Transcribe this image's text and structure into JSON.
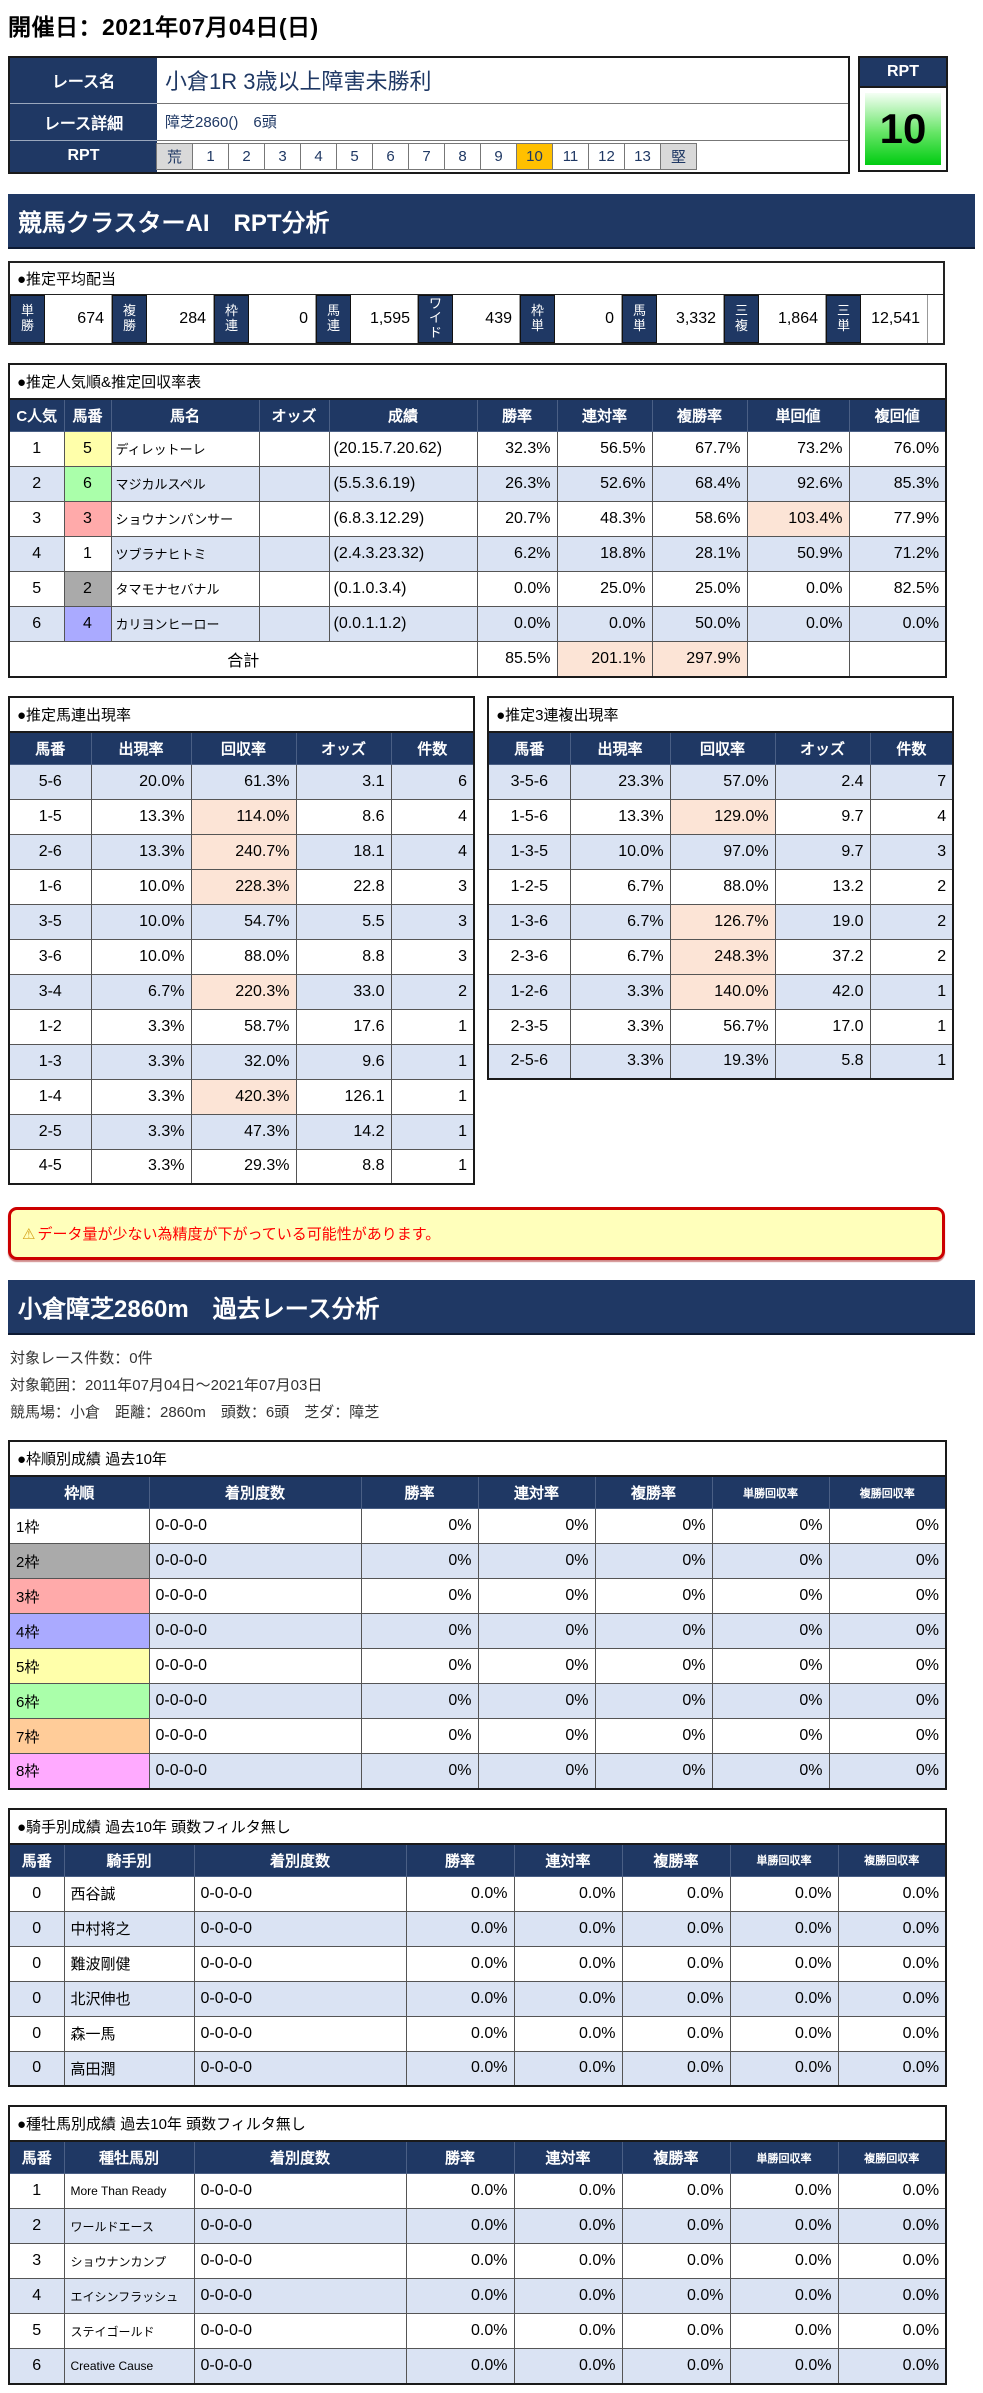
{
  "page": {
    "date_header": "開催日：2021年07月04日(日)"
  },
  "colors": {
    "navy": "#1f3864",
    "stripe_blue": "#dae3f3",
    "highlight_peach": "#fce4d6",
    "rpt_selected_orange": "#ffc000",
    "rpt_value_green": "#00cc11",
    "warning_bg": "#ffffbb",
    "warning_border": "#cc0000",
    "warning_text": "#ff0000"
  },
  "race": {
    "name_label": "レース名",
    "name": "小倉1R 3歳以上障害未勝利",
    "detail_label": "レース詳細",
    "detail": "障芝2860()　6頭",
    "rpt_label": "RPT",
    "scale": [
      {
        "t": "荒",
        "bg": "#d9d9d9"
      },
      {
        "t": "1",
        "bg": ""
      },
      {
        "t": "2",
        "bg": ""
      },
      {
        "t": "3",
        "bg": ""
      },
      {
        "t": "4",
        "bg": ""
      },
      {
        "t": "5",
        "bg": ""
      },
      {
        "t": "6",
        "bg": ""
      },
      {
        "t": "7",
        "bg": ""
      },
      {
        "t": "8",
        "bg": ""
      },
      {
        "t": "9",
        "bg": ""
      },
      {
        "t": "10",
        "bg": "#ffc000"
      },
      {
        "t": "11",
        "bg": ""
      },
      {
        "t": "12",
        "bg": ""
      },
      {
        "t": "13",
        "bg": ""
      },
      {
        "t": "堅",
        "bg": "#d9d9d9"
      }
    ],
    "rpt_box": {
      "label": "RPT",
      "value": "10"
    }
  },
  "ai_section": {
    "title": "競馬クラスターAI　RPT分析",
    "payout": {
      "title": "●推定平均配当",
      "items": [
        {
          "label": "単勝",
          "value": "674"
        },
        {
          "label": "複勝",
          "value": "284"
        },
        {
          "label": "枠連",
          "value": "0"
        },
        {
          "label": "馬連",
          "value": "1,595"
        },
        {
          "label": "ワイド",
          "value": "439"
        },
        {
          "label": "枠単",
          "value": "0"
        },
        {
          "label": "馬単",
          "value": "3,332"
        },
        {
          "label": "三複",
          "value": "1,864"
        },
        {
          "label": "三単",
          "value": "12,541"
        }
      ]
    },
    "pop_table": {
      "title": "●推定人気順&推定回収率表",
      "headers": [
        "C人気",
        "馬番",
        "馬名",
        "オッズ",
        "成績",
        "勝率",
        "連対率",
        "複勝率",
        "単回値",
        "複回値"
      ],
      "rows": [
        {
          "rank": "1",
          "num": "5",
          "num_bg": "#ffffaa",
          "name": "ディレットーレ",
          "odds": "",
          "record": "(20.15.7.20.62)",
          "win": "32.3%",
          "quinella": "56.5%",
          "show": "67.7%",
          "win_roi": "73.2%",
          "win_roi_bg": "",
          "show_roi": "76.0%"
        },
        {
          "rank": "2",
          "num": "6",
          "num_bg": "#aaffaa",
          "name": "マジカルスペル",
          "odds": "",
          "record": "(5.5.3.6.19)",
          "win": "26.3%",
          "quinella": "52.6%",
          "show": "68.4%",
          "win_roi": "92.6%",
          "win_roi_bg": "",
          "show_roi": "85.3%"
        },
        {
          "rank": "3",
          "num": "3",
          "num_bg": "#ffaaaa",
          "name": "ショウナンパンサー",
          "odds": "",
          "record": "(6.8.3.12.29)",
          "win": "20.7%",
          "quinella": "48.3%",
          "show": "58.6%",
          "win_roi": "103.4%",
          "win_roi_bg": "#fce4d6",
          "show_roi": "77.9%"
        },
        {
          "rank": "4",
          "num": "1",
          "num_bg": "#ffffff",
          "name": "ツブラナヒトミ",
          "odds": "",
          "record": "(2.4.3.23.32)",
          "win": "6.2%",
          "quinella": "18.8%",
          "show": "28.1%",
          "win_roi": "50.9%",
          "win_roi_bg": "",
          "show_roi": "71.2%"
        },
        {
          "rank": "5",
          "num": "2",
          "num_bg": "#aaaaaa",
          "name": "タマモナセバナル",
          "odds": "",
          "record": "(0.1.0.3.4)",
          "win": "0.0%",
          "quinella": "25.0%",
          "show": "25.0%",
          "win_roi": "0.0%",
          "win_roi_bg": "",
          "show_roi": "82.5%"
        },
        {
          "rank": "6",
          "num": "4",
          "num_bg": "#aaaaff",
          "name": "カリヨンヒーロー",
          "odds": "",
          "record": "(0.0.1.1.2)",
          "win": "0.0%",
          "quinella": "0.0%",
          "show": "50.0%",
          "win_roi": "0.0%",
          "win_roi_bg": "",
          "show_roi": "0.0%"
        }
      ],
      "total": {
        "label": "合計",
        "win": "85.5%",
        "win_bg": "",
        "quinella": "201.1%",
        "quinella_bg": "#fce4d6",
        "show": "297.9%",
        "show_bg": "#fce4d6"
      }
    },
    "umaren_table": {
      "title": "●推定馬連出現率",
      "headers": [
        "馬番",
        "出現率",
        "回収率",
        "オッズ",
        "件数"
      ],
      "rows": [
        {
          "pair": "5-6",
          "rate": "20.0%",
          "roi": "61.3%",
          "roi_bg": "",
          "odds": "3.1",
          "count": "6"
        },
        {
          "pair": "1-5",
          "rate": "13.3%",
          "roi": "114.0%",
          "roi_bg": "#fce4d6",
          "odds": "8.6",
          "count": "4"
        },
        {
          "pair": "2-6",
          "rate": "13.3%",
          "roi": "240.7%",
          "roi_bg": "#fce4d6",
          "odds": "18.1",
          "count": "4"
        },
        {
          "pair": "1-6",
          "rate": "10.0%",
          "roi": "228.3%",
          "roi_bg": "#fce4d6",
          "odds": "22.8",
          "count": "3"
        },
        {
          "pair": "3-5",
          "rate": "10.0%",
          "roi": "54.7%",
          "roi_bg": "",
          "odds": "5.5",
          "count": "3"
        },
        {
          "pair": "3-6",
          "rate": "10.0%",
          "roi": "88.0%",
          "roi_bg": "",
          "odds": "8.8",
          "count": "3"
        },
        {
          "pair": "3-4",
          "rate": "6.7%",
          "roi": "220.3%",
          "roi_bg": "#fce4d6",
          "odds": "33.0",
          "count": "2"
        },
        {
          "pair": "1-2",
          "rate": "3.3%",
          "roi": "58.7%",
          "roi_bg": "",
          "odds": "17.6",
          "count": "1"
        },
        {
          "pair": "1-3",
          "rate": "3.3%",
          "roi": "32.0%",
          "roi_bg": "",
          "odds": "9.6",
          "count": "1"
        },
        {
          "pair": "1-4",
          "rate": "3.3%",
          "roi": "420.3%",
          "roi_bg": "#fce4d6",
          "odds": "126.1",
          "count": "1"
        },
        {
          "pair": "2-5",
          "rate": "3.3%",
          "roi": "47.3%",
          "roi_bg": "",
          "odds": "14.2",
          "count": "1"
        },
        {
          "pair": "4-5",
          "rate": "3.3%",
          "roi": "29.3%",
          "roi_bg": "",
          "odds": "8.8",
          "count": "1"
        }
      ]
    },
    "sanrenpuku_table": {
      "title": "●推定3連複出現率",
      "headers": [
        "馬番",
        "出現率",
        "回収率",
        "オッズ",
        "件数"
      ],
      "rows": [
        {
          "pair": "3-5-6",
          "rate": "23.3%",
          "roi": "57.0%",
          "roi_bg": "",
          "odds": "2.4",
          "count": "7"
        },
        {
          "pair": "1-5-6",
          "rate": "13.3%",
          "roi": "129.0%",
          "roi_bg": "#fce4d6",
          "odds": "9.7",
          "count": "4"
        },
        {
          "pair": "1-3-5",
          "rate": "10.0%",
          "roi": "97.0%",
          "roi_bg": "",
          "odds": "9.7",
          "count": "3"
        },
        {
          "pair": "1-2-5",
          "rate": "6.7%",
          "roi": "88.0%",
          "roi_bg": "",
          "odds": "13.2",
          "count": "2"
        },
        {
          "pair": "1-3-6",
          "rate": "6.7%",
          "roi": "126.7%",
          "roi_bg": "#fce4d6",
          "odds": "19.0",
          "count": "2"
        },
        {
          "pair": "2-3-6",
          "rate": "6.7%",
          "roi": "248.3%",
          "roi_bg": "#fce4d6",
          "odds": "37.2",
          "count": "2"
        },
        {
          "pair": "1-2-6",
          "rate": "3.3%",
          "roi": "140.0%",
          "roi_bg": "#fce4d6",
          "odds": "42.0",
          "count": "1"
        },
        {
          "pair": "2-3-5",
          "rate": "3.3%",
          "roi": "56.7%",
          "roi_bg": "",
          "odds": "17.0",
          "count": "1"
        },
        {
          "pair": "2-5-6",
          "rate": "3.3%",
          "roi": "19.3%",
          "roi_bg": "",
          "odds": "5.8",
          "count": "1"
        }
      ]
    },
    "warning": {
      "icon": "⚠",
      "text": "データ量が少ない為精度が下がっている可能性があります。"
    }
  },
  "past_section": {
    "title": "小倉障芝2860m　過去レース分析",
    "info_lines": [
      "対象レース件数：0件",
      "対象範囲：2011年07月04日～2021年07月03日",
      "競馬場：小倉　距離：2860m　頭数：6頭　芝ダ：障芝"
    ],
    "waku_table": {
      "title": "●枠順別成績 過去10年",
      "headers": [
        "枠順",
        "着別度数",
        "勝率",
        "連対率",
        "複勝率",
        "単勝回収率",
        "複勝回収率"
      ],
      "rows": [
        {
          "label": "1枠",
          "bg": "#ffffff",
          "counts": "0-0-0-0",
          "win": "0%",
          "quinella": "0%",
          "show": "0%",
          "win_roi": "0%",
          "show_roi": "0%"
        },
        {
          "label": "2枠",
          "bg": "#aaaaaa",
          "counts": "0-0-0-0",
          "win": "0%",
          "quinella": "0%",
          "show": "0%",
          "win_roi": "0%",
          "show_roi": "0%"
        },
        {
          "label": "3枠",
          "bg": "#ffaaaa",
          "counts": "0-0-0-0",
          "win": "0%",
          "quinella": "0%",
          "show": "0%",
          "win_roi": "0%",
          "show_roi": "0%"
        },
        {
          "label": "4枠",
          "bg": "#aaaaff",
          "counts": "0-0-0-0",
          "win": "0%",
          "quinella": "0%",
          "show": "0%",
          "win_roi": "0%",
          "show_roi": "0%"
        },
        {
          "label": "5枠",
          "bg": "#ffffaa",
          "counts": "0-0-0-0",
          "win": "0%",
          "quinella": "0%",
          "show": "0%",
          "win_roi": "0%",
          "show_roi": "0%"
        },
        {
          "label": "6枠",
          "bg": "#aaffaa",
          "counts": "0-0-0-0",
          "win": "0%",
          "quinella": "0%",
          "show": "0%",
          "win_roi": "0%",
          "show_roi": "0%"
        },
        {
          "label": "7枠",
          "bg": "#ffcc99",
          "counts": "0-0-0-0",
          "win": "0%",
          "quinella": "0%",
          "show": "0%",
          "win_roi": "0%",
          "show_roi": "0%"
        },
        {
          "label": "8枠",
          "bg": "#ffaaff",
          "counts": "0-0-0-0",
          "win": "0%",
          "quinella": "0%",
          "show": "0%",
          "win_roi": "0%",
          "show_roi": "0%"
        }
      ]
    },
    "jockey_table": {
      "title": "●騎手別成績 過去10年 頭数フィルタ無し",
      "headers": [
        "馬番",
        "騎手別",
        "着別度数",
        "勝率",
        "連対率",
        "複勝率",
        "単勝回収率",
        "複勝回収率"
      ],
      "rows": [
        {
          "num": "0",
          "name": "西谷誠",
          "counts": "0-0-0-0",
          "win": "0.0%",
          "quinella": "0.0%",
          "show": "0.0%",
          "win_roi": "0.0%",
          "show_roi": "0.0%"
        },
        {
          "num": "0",
          "name": "中村将之",
          "counts": "0-0-0-0",
          "win": "0.0%",
          "quinella": "0.0%",
          "show": "0.0%",
          "win_roi": "0.0%",
          "show_roi": "0.0%"
        },
        {
          "num": "0",
          "name": "難波剛健",
          "counts": "0-0-0-0",
          "win": "0.0%",
          "quinella": "0.0%",
          "show": "0.0%",
          "win_roi": "0.0%",
          "show_roi": "0.0%"
        },
        {
          "num": "0",
          "name": "北沢伸也",
          "counts": "0-0-0-0",
          "win": "0.0%",
          "quinella": "0.0%",
          "show": "0.0%",
          "win_roi": "0.0%",
          "show_roi": "0.0%"
        },
        {
          "num": "0",
          "name": "森一馬",
          "counts": "0-0-0-0",
          "win": "0.0%",
          "quinella": "0.0%",
          "show": "0.0%",
          "win_roi": "0.0%",
          "show_roi": "0.0%"
        },
        {
          "num": "0",
          "name": "高田潤",
          "counts": "0-0-0-0",
          "win": "0.0%",
          "quinella": "0.0%",
          "show": "0.0%",
          "win_roi": "0.0%",
          "show_roi": "0.0%"
        }
      ]
    },
    "sire_table": {
      "title": "●種牡馬別成績 過去10年 頭数フィルタ無し",
      "headers": [
        "馬番",
        "種牡馬別",
        "着別度数",
        "勝率",
        "連対率",
        "複勝率",
        "単勝回収率",
        "複勝回収率"
      ],
      "rows": [
        {
          "num": "1",
          "name": "More Than Ready",
          "counts": "0-0-0-0",
          "win": "0.0%",
          "quinella": "0.0%",
          "show": "0.0%",
          "win_roi": "0.0%",
          "show_roi": "0.0%"
        },
        {
          "num": "2",
          "name": "ワールドエース",
          "counts": "0-0-0-0",
          "win": "0.0%",
          "quinella": "0.0%",
          "show": "0.0%",
          "win_roi": "0.0%",
          "show_roi": "0.0%"
        },
        {
          "num": "3",
          "name": "ショウナンカンプ",
          "counts": "0-0-0-0",
          "win": "0.0%",
          "quinella": "0.0%",
          "show": "0.0%",
          "win_roi": "0.0%",
          "show_roi": "0.0%"
        },
        {
          "num": "4",
          "name": "エイシンフラッシュ",
          "counts": "0-0-0-0",
          "win": "0.0%",
          "quinella": "0.0%",
          "show": "0.0%",
          "win_roi": "0.0%",
          "show_roi": "0.0%"
        },
        {
          "num": "5",
          "name": "ステイゴールド",
          "counts": "0-0-0-0",
          "win": "0.0%",
          "quinella": "0.0%",
          "show": "0.0%",
          "win_roi": "0.0%",
          "show_roi": "0.0%"
        },
        {
          "num": "6",
          "name": "Creative Cause",
          "counts": "0-0-0-0",
          "win": "0.0%",
          "quinella": "0.0%",
          "show": "0.0%",
          "win_roi": "0.0%",
          "show_roi": "0.0%"
        }
      ]
    }
  }
}
